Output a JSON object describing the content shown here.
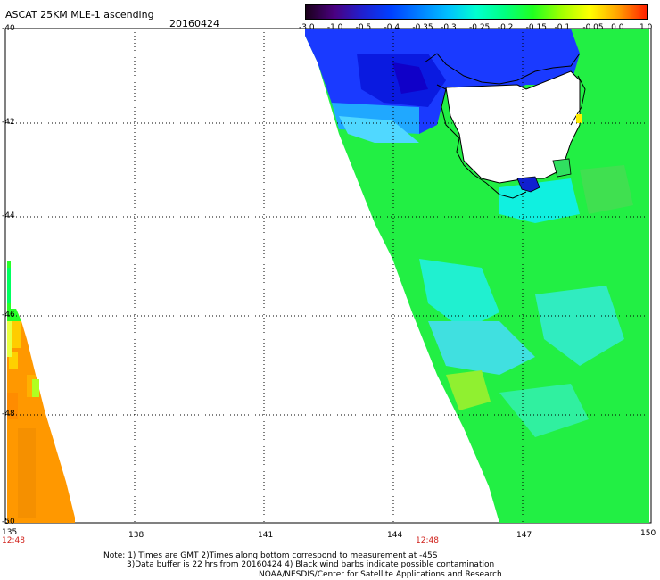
{
  "title": "ASCAT 25KM MLE-1 ascending",
  "date": "20160424",
  "colorbar": {
    "labels": [
      "-3.0",
      "-1.0",
      "-0.5",
      "-0.4",
      "-0.35",
      "-0.3",
      "-0.25",
      "-0.2",
      "-0.15",
      "-0.1",
      "-0.05",
      "0.0",
      "1.0"
    ],
    "colors": [
      "#1a001a",
      "#4a0080",
      "#2020d0",
      "#0040ff",
      "#0080ff",
      "#00c0ff",
      "#00ffd0",
      "#00ff80",
      "#20ff20",
      "#a0ff00",
      "#ffff00",
      "#ffa000",
      "#ff2000"
    ]
  },
  "lat_labels": [
    "-40",
    "-42",
    "-44",
    "-46",
    "-48",
    "-50"
  ],
  "lon_labels": [
    "135",
    "138",
    "141",
    "144",
    "147",
    "150"
  ],
  "times": [
    "12:48",
    "12:48"
  ],
  "note_lines": [
    "Note: 1) Times are GMT 2)Times along bottom correspond to measurement at -45S",
    "3)Data buffer is 22 hrs from 20160424 4) Black wind barbs indicate possible contamination",
    "NOAA/NESDIS/Center for Satellite Applications and Research"
  ]
}
